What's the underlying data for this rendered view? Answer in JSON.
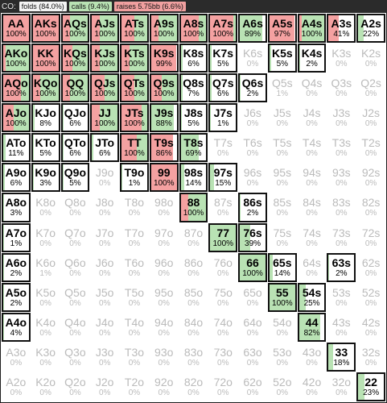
{
  "header": {
    "title": "CO:",
    "folds": "folds (84.0%)",
    "calls": "calls (9.4%)",
    "raises": "raises 5.75bb (6.6%)"
  },
  "colors": {
    "raise": "#f4a1a1",
    "call": "#b9e2b4",
    "fold": "#ffffff"
  },
  "rows": [
    [
      [
        "AA",
        "100%",
        100,
        0
      ],
      [
        "AKs",
        "100%",
        100,
        0
      ],
      [
        "AQs",
        "100%",
        30,
        70
      ],
      [
        "AJs",
        "100%",
        30,
        70
      ],
      [
        "ATs",
        "100%",
        50,
        50
      ],
      [
        "A9s",
        "100%",
        30,
        70
      ],
      [
        "A8s",
        "100%",
        70,
        30
      ],
      [
        "A7s",
        "100%",
        90,
        10
      ],
      [
        "A6s",
        "89%",
        0,
        89
      ],
      [
        "A5s",
        "97%",
        97,
        0
      ],
      [
        "A4s",
        "100%",
        10,
        90
      ],
      [
        "A3s",
        "41%",
        41,
        0
      ],
      [
        "A2s",
        "22%",
        0,
        22
      ]
    ],
    [
      [
        "AKo",
        "100%",
        10,
        90
      ],
      [
        "KK",
        "100%",
        100,
        0
      ],
      [
        "KQs",
        "100%",
        40,
        60
      ],
      [
        "KJs",
        "100%",
        30,
        70
      ],
      [
        "KTs",
        "100%",
        30,
        70
      ],
      [
        "K9s",
        "99%",
        99,
        0
      ],
      [
        "K8s",
        "6%",
        0,
        6
      ],
      [
        "K7s",
        "5%",
        0,
        5
      ],
      [
        "K6s",
        "0%",
        0,
        0
      ],
      [
        "K5s",
        "5%",
        0,
        5
      ],
      [
        "K4s",
        "2%",
        0,
        2
      ],
      [
        "K3s",
        "0%",
        0,
        0
      ],
      [
        "K2s",
        "0%",
        0,
        0
      ]
    ],
    [
      [
        "AQo",
        "100%",
        70,
        30
      ],
      [
        "KQo",
        "100%",
        30,
        70
      ],
      [
        "QQ",
        "100%",
        30,
        70
      ],
      [
        "QJs",
        "100%",
        50,
        50
      ],
      [
        "QTs",
        "100%",
        50,
        50
      ],
      [
        "Q9s",
        "100%",
        40,
        60
      ],
      [
        "Q8s",
        "7%",
        0,
        7
      ],
      [
        "Q7s",
        "6%",
        0,
        6
      ],
      [
        "Q6s",
        "2%",
        0,
        2
      ],
      [
        "Q5s",
        "1%",
        0,
        0
      ],
      [
        "Q4s",
        "0%",
        0,
        0
      ],
      [
        "Q3s",
        "0%",
        0,
        0
      ],
      [
        "Q2s",
        "0%",
        0,
        0
      ]
    ],
    [
      [
        "AJo",
        "100%",
        40,
        60
      ],
      [
        "KJo",
        "8%",
        0,
        8
      ],
      [
        "QJo",
        "6%",
        0,
        6
      ],
      [
        "JJ",
        "100%",
        30,
        70
      ],
      [
        "JTs",
        "100%",
        80,
        20
      ],
      [
        "J9s",
        "88%",
        0,
        88
      ],
      [
        "J8s",
        "5%",
        0,
        5
      ],
      [
        "J7s",
        "1%",
        0,
        1
      ],
      [
        "J6s",
        "0%",
        0,
        0
      ],
      [
        "J5s",
        "0%",
        0,
        0
      ],
      [
        "J4s",
        "0%",
        0,
        0
      ],
      [
        "J3s",
        "0%",
        0,
        0
      ],
      [
        "J2s",
        "0%",
        0,
        0
      ]
    ],
    [
      [
        "ATo",
        "11%",
        0,
        11
      ],
      [
        "KTo",
        "5%",
        0,
        5
      ],
      [
        "QTo",
        "6%",
        0,
        6
      ],
      [
        "JTo",
        "6%",
        0,
        6
      ],
      [
        "TT",
        "100%",
        60,
        40
      ],
      [
        "T9s",
        "86%",
        86,
        0
      ],
      [
        "T8s",
        "69%",
        0,
        69
      ],
      [
        "T7s",
        "0%",
        0,
        0
      ],
      [
        "T6s",
        "0%",
        0,
        0
      ],
      [
        "T5s",
        "0%",
        0,
        0
      ],
      [
        "T4s",
        "0%",
        0,
        0
      ],
      [
        "T3s",
        "0%",
        0,
        0
      ],
      [
        "T2s",
        "0%",
        0,
        0
      ]
    ],
    [
      [
        "A9o",
        "6%",
        0,
        6
      ],
      [
        "K9o",
        "3%",
        0,
        3
      ],
      [
        "Q9o",
        "5%",
        0,
        5
      ],
      [
        "J9o",
        "0%",
        0,
        0
      ],
      [
        "T9o",
        "1%",
        0,
        1
      ],
      [
        "99",
        "100%",
        100,
        0
      ],
      [
        "98s",
        "14%",
        0,
        14
      ],
      [
        "97s",
        "15%",
        0,
        15
      ],
      [
        "96s",
        "0%",
        0,
        0
      ],
      [
        "95s",
        "0%",
        0,
        0
      ],
      [
        "94s",
        "0%",
        0,
        0
      ],
      [
        "93s",
        "0%",
        0,
        0
      ],
      [
        "92s",
        "0%",
        0,
        0
      ]
    ],
    [
      [
        "A8o",
        "3%",
        0,
        3
      ],
      [
        "K8o",
        "0%",
        0,
        0
      ],
      [
        "Q8o",
        "0%",
        0,
        0
      ],
      [
        "J8o",
        "0%",
        0,
        0
      ],
      [
        "T8o",
        "0%",
        0,
        0
      ],
      [
        "98o",
        "0%",
        0,
        0
      ],
      [
        "88",
        "100%",
        30,
        70
      ],
      [
        "87s",
        "0%",
        0,
        0
      ],
      [
        "86s",
        "2%",
        0,
        2
      ],
      [
        "85s",
        "0%",
        0,
        0
      ],
      [
        "84s",
        "0%",
        0,
        0
      ],
      [
        "83s",
        "0%",
        0,
        0
      ],
      [
        "82s",
        "0%",
        0,
        0
      ]
    ],
    [
      [
        "A7o",
        "1%",
        0,
        1
      ],
      [
        "K7o",
        "0%",
        0,
        0
      ],
      [
        "Q7o",
        "0%",
        0,
        0
      ],
      [
        "J7o",
        "0%",
        0,
        0
      ],
      [
        "T7o",
        "0%",
        0,
        0
      ],
      [
        "97o",
        "0%",
        0,
        0
      ],
      [
        "87o",
        "0%",
        0,
        0
      ],
      [
        "77",
        "100%",
        0,
        100
      ],
      [
        "76s",
        "39%",
        0,
        39
      ],
      [
        "75s",
        "0%",
        0,
        0
      ],
      [
        "74s",
        "0%",
        0,
        0
      ],
      [
        "73s",
        "0%",
        0,
        0
      ],
      [
        "72s",
        "0%",
        0,
        0
      ]
    ],
    [
      [
        "A6o",
        "2%",
        0,
        2
      ],
      [
        "K6o",
        "1%",
        0,
        0
      ],
      [
        "Q6o",
        "0%",
        0,
        0
      ],
      [
        "J6o",
        "0%",
        0,
        0
      ],
      [
        "T6o",
        "0%",
        0,
        0
      ],
      [
        "96o",
        "0%",
        0,
        0
      ],
      [
        "86o",
        "0%",
        0,
        0
      ],
      [
        "76o",
        "0%",
        0,
        0
      ],
      [
        "66",
        "100%",
        0,
        100
      ],
      [
        "65s",
        "14%",
        0,
        14
      ],
      [
        "64s",
        "0%",
        0,
        0
      ],
      [
        "63s",
        "2%",
        0,
        2
      ],
      [
        "62s",
        "0%",
        0,
        0
      ]
    ],
    [
      [
        "A5o",
        "2%",
        0,
        2
      ],
      [
        "K5o",
        "0%",
        0,
        0
      ],
      [
        "Q5o",
        "0%",
        0,
        0
      ],
      [
        "J5o",
        "0%",
        0,
        0
      ],
      [
        "T5o",
        "0%",
        0,
        0
      ],
      [
        "95o",
        "0%",
        0,
        0
      ],
      [
        "85o",
        "0%",
        0,
        0
      ],
      [
        "75o",
        "0%",
        0,
        0
      ],
      [
        "65o",
        "0%",
        0,
        0
      ],
      [
        "55",
        "100%",
        0,
        100
      ],
      [
        "54s",
        "25%",
        0,
        25
      ],
      [
        "53s",
        "0%",
        0,
        0
      ],
      [
        "52s",
        "0%",
        0,
        0
      ]
    ],
    [
      [
        "A4o",
        "4%",
        0,
        4
      ],
      [
        "K4o",
        "0%",
        0,
        0
      ],
      [
        "Q4o",
        "0%",
        0,
        0
      ],
      [
        "J4o",
        "0%",
        0,
        0
      ],
      [
        "T4o",
        "0%",
        0,
        0
      ],
      [
        "94o",
        "0%",
        0,
        0
      ],
      [
        "84o",
        "0%",
        0,
        0
      ],
      [
        "74o",
        "0%",
        0,
        0
      ],
      [
        "64o",
        "0%",
        0,
        0
      ],
      [
        "54o",
        "0%",
        0,
        0
      ],
      [
        "44",
        "82%",
        0,
        82
      ],
      [
        "43s",
        "0%",
        0,
        0
      ],
      [
        "42s",
        "0%",
        0,
        0
      ]
    ],
    [
      [
        "A3o",
        "0%",
        0,
        0
      ],
      [
        "K3o",
        "0%",
        0,
        0
      ],
      [
        "Q3o",
        "0%",
        0,
        0
      ],
      [
        "J3o",
        "0%",
        0,
        0
      ],
      [
        "T3o",
        "0%",
        0,
        0
      ],
      [
        "93o",
        "0%",
        0,
        0
      ],
      [
        "83o",
        "0%",
        0,
        0
      ],
      [
        "73o",
        "0%",
        0,
        0
      ],
      [
        "63o",
        "0%",
        0,
        0
      ],
      [
        "53o",
        "0%",
        0,
        0
      ],
      [
        "43o",
        "0%",
        0,
        0
      ],
      [
        "33",
        "18%",
        0,
        18
      ],
      [
        "32s",
        "0%",
        0,
        0
      ]
    ],
    [
      [
        "A2o",
        "0%",
        0,
        0
      ],
      [
        "K2o",
        "0%",
        0,
        0
      ],
      [
        "Q2o",
        "0%",
        0,
        0
      ],
      [
        "J2o",
        "0%",
        0,
        0
      ],
      [
        "T2o",
        "0%",
        0,
        0
      ],
      [
        "92o",
        "0%",
        0,
        0
      ],
      [
        "82o",
        "0%",
        0,
        0
      ],
      [
        "72o",
        "0%",
        0,
        0
      ],
      [
        "62o",
        "0%",
        0,
        0
      ],
      [
        "52o",
        "0%",
        0,
        0
      ],
      [
        "42o",
        "0%",
        0,
        0
      ],
      [
        "32o",
        "0%",
        0,
        0
      ],
      [
        "22",
        "23%",
        0,
        23
      ]
    ]
  ]
}
